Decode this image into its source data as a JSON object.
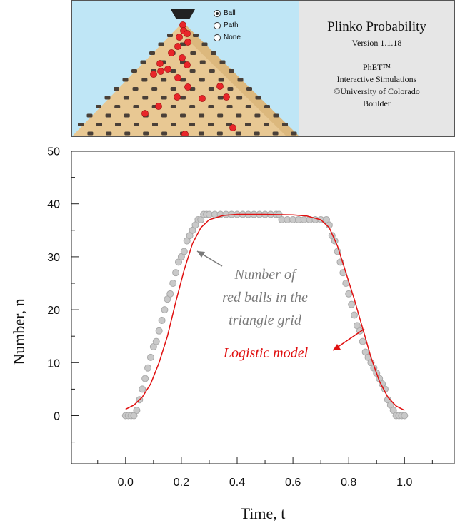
{
  "inset": {
    "radio_options": [
      {
        "label": "Ball",
        "selected": true
      },
      {
        "label": "Path",
        "selected": false
      },
      {
        "label": "None",
        "selected": false
      }
    ],
    "app_title": "Plinko Probability",
    "version": "Version 1.1.18",
    "credit_line1": "PhET™",
    "credit_line2": "Interactive Simulations",
    "credit_line3": "©University of Colorado",
    "credit_line4": "Boulder",
    "colors": {
      "sky": "#bfe6f6",
      "board": "#e8c893",
      "ball": "#e8262a",
      "panel": "#e6e6e6"
    }
  },
  "chart_data": {
    "type": "scatter",
    "xlabel": "Time, t",
    "ylabel": "Number, n",
    "xlim": [
      -0.2,
      1.2
    ],
    "ylim": [
      -10,
      50
    ],
    "xticks": [
      "0.0",
      "0.2",
      "0.4",
      "0.6",
      "0.8",
      "1.0"
    ],
    "yticks": [
      "0",
      "10",
      "20",
      "30",
      "40",
      "50"
    ],
    "series": [
      {
        "name": "Number of red balls in the triangle grid",
        "color": "#a9a9a9",
        "points": [
          [
            0.0,
            0
          ],
          [
            0.01,
            0
          ],
          [
            0.02,
            0
          ],
          [
            0.03,
            0
          ],
          [
            0.04,
            1
          ],
          [
            0.05,
            3
          ],
          [
            0.06,
            5
          ],
          [
            0.07,
            7
          ],
          [
            0.08,
            9
          ],
          [
            0.09,
            11
          ],
          [
            0.1,
            13
          ],
          [
            0.11,
            14
          ],
          [
            0.12,
            16
          ],
          [
            0.13,
            18
          ],
          [
            0.14,
            20
          ],
          [
            0.15,
            22
          ],
          [
            0.16,
            23
          ],
          [
            0.17,
            25
          ],
          [
            0.18,
            27
          ],
          [
            0.19,
            29
          ],
          [
            0.2,
            30
          ],
          [
            0.21,
            31
          ],
          [
            0.22,
            33
          ],
          [
            0.23,
            34
          ],
          [
            0.24,
            35
          ],
          [
            0.25,
            36
          ],
          [
            0.26,
            37
          ],
          [
            0.27,
            37
          ],
          [
            0.28,
            38
          ],
          [
            0.29,
            38
          ],
          [
            0.3,
            38
          ],
          [
            0.32,
            38
          ],
          [
            0.34,
            38
          ],
          [
            0.36,
            38
          ],
          [
            0.38,
            38
          ],
          [
            0.4,
            38
          ],
          [
            0.42,
            38
          ],
          [
            0.44,
            38
          ],
          [
            0.46,
            38
          ],
          [
            0.48,
            38
          ],
          [
            0.5,
            38
          ],
          [
            0.52,
            38
          ],
          [
            0.54,
            38
          ],
          [
            0.55,
            38
          ],
          [
            0.56,
            37
          ],
          [
            0.58,
            37
          ],
          [
            0.6,
            37
          ],
          [
            0.62,
            37
          ],
          [
            0.64,
            37
          ],
          [
            0.66,
            37
          ],
          [
            0.68,
            37
          ],
          [
            0.7,
            37
          ],
          [
            0.72,
            37
          ],
          [
            0.73,
            36
          ],
          [
            0.74,
            34
          ],
          [
            0.75,
            33
          ],
          [
            0.76,
            31
          ],
          [
            0.77,
            29
          ],
          [
            0.78,
            27
          ],
          [
            0.79,
            25
          ],
          [
            0.8,
            23
          ],
          [
            0.81,
            21
          ],
          [
            0.82,
            19
          ],
          [
            0.83,
            17
          ],
          [
            0.84,
            16
          ],
          [
            0.85,
            14
          ],
          [
            0.86,
            12
          ],
          [
            0.87,
            11
          ],
          [
            0.88,
            10
          ],
          [
            0.89,
            9
          ],
          [
            0.9,
            8
          ],
          [
            0.91,
            7
          ],
          [
            0.92,
            6
          ],
          [
            0.93,
            5
          ],
          [
            0.94,
            3
          ],
          [
            0.95,
            2
          ],
          [
            0.96,
            1
          ],
          [
            0.97,
            0
          ],
          [
            0.98,
            0
          ],
          [
            0.99,
            0
          ],
          [
            1.0,
            0
          ]
        ]
      },
      {
        "name": "Logistic model",
        "color": "#e01010",
        "points": [
          [
            0.0,
            1.2
          ],
          [
            0.03,
            2.0
          ],
          [
            0.06,
            3.5
          ],
          [
            0.09,
            6.0
          ],
          [
            0.12,
            10.0
          ],
          [
            0.15,
            15.0
          ],
          [
            0.18,
            21.5
          ],
          [
            0.21,
            27.5
          ],
          [
            0.24,
            32.5
          ],
          [
            0.27,
            35.5
          ],
          [
            0.3,
            37.0
          ],
          [
            0.35,
            37.8
          ],
          [
            0.4,
            38.0
          ],
          [
            0.5,
            38.0
          ],
          [
            0.6,
            37.9
          ],
          [
            0.65,
            37.7
          ],
          [
            0.7,
            37.0
          ],
          [
            0.73,
            35.5
          ],
          [
            0.76,
            32.0
          ],
          [
            0.79,
            27.0
          ],
          [
            0.82,
            22.0
          ],
          [
            0.85,
            16.5
          ],
          [
            0.88,
            11.0
          ],
          [
            0.91,
            6.5
          ],
          [
            0.94,
            3.5
          ],
          [
            0.97,
            1.8
          ],
          [
            1.0,
            1.0
          ]
        ]
      }
    ],
    "annotations": {
      "gray_line1": "Number of",
      "gray_line2": "red balls in the",
      "gray_line3": "triangle grid",
      "red_text": "Logistic model"
    }
  }
}
